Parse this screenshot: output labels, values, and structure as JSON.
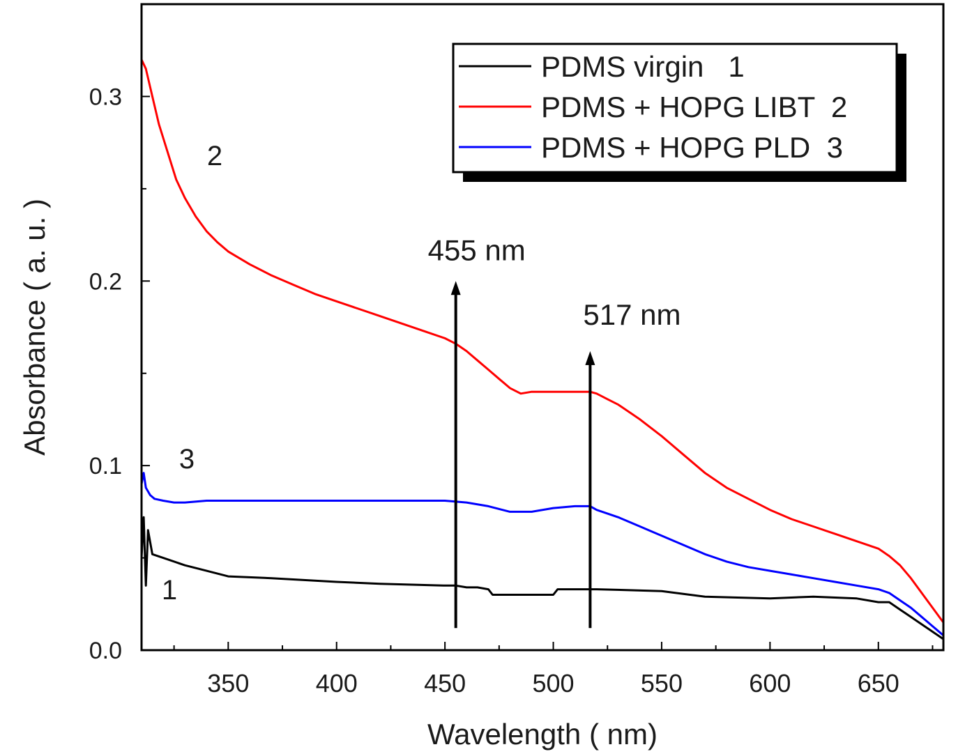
{
  "chart_data": {
    "type": "line",
    "title": "",
    "xlabel": "Wavelength ( nm)",
    "ylabel": "Absorbance ( a. u. )",
    "xlim": [
      310,
      680
    ],
    "ylim": [
      0,
      0.35
    ],
    "x_ticks": [
      350,
      400,
      450,
      500,
      550,
      600,
      650
    ],
    "x_tick_labels": [
      "350",
      "400",
      "450",
      "500",
      "550",
      "600",
      "650"
    ],
    "y_ticks": [
      0.0,
      0.1,
      0.2,
      0.3
    ],
    "y_tick_labels": [
      "0.0",
      "0.1",
      "0.2",
      "0.3"
    ],
    "grid": false,
    "legend_position": "top-right",
    "series": [
      {
        "name": "PDMS virgin   1",
        "color": "#000000",
        "curve_label": "1",
        "x": [
          310,
          311,
          312,
          313,
          315,
          320,
          330,
          340,
          350,
          370,
          400,
          420,
          450,
          455,
          460,
          465,
          470,
          472,
          480,
          490,
          500,
          502,
          520,
          550,
          570,
          600,
          620,
          640,
          650,
          655,
          660,
          665,
          670,
          675,
          680
        ],
        "y": [
          0.05,
          0.072,
          0.035,
          0.065,
          0.052,
          0.05,
          0.046,
          0.043,
          0.04,
          0.039,
          0.037,
          0.036,
          0.035,
          0.035,
          0.034,
          0.034,
          0.033,
          0.03,
          0.03,
          0.03,
          0.03,
          0.033,
          0.033,
          0.032,
          0.029,
          0.028,
          0.029,
          0.028,
          0.026,
          0.026,
          0.022,
          0.018,
          0.014,
          0.01,
          0.006
        ]
      },
      {
        "name": "PDMS + HOPG LIBT  2",
        "color": "#ff0000",
        "curve_label": "2",
        "x": [
          310,
          312,
          315,
          318,
          322,
          326,
          330,
          335,
          340,
          345,
          350,
          360,
          370,
          380,
          390,
          400,
          410,
          420,
          430,
          440,
          450,
          455,
          460,
          465,
          470,
          475,
          480,
          485,
          490,
          500,
          510,
          517,
          520,
          525,
          530,
          540,
          550,
          560,
          570,
          580,
          590,
          600,
          610,
          620,
          630,
          640,
          650,
          655,
          660,
          665,
          670,
          675,
          680
        ],
        "y": [
          0.32,
          0.315,
          0.3,
          0.285,
          0.27,
          0.255,
          0.245,
          0.235,
          0.227,
          0.221,
          0.216,
          0.209,
          0.203,
          0.198,
          0.193,
          0.189,
          0.185,
          0.181,
          0.177,
          0.173,
          0.169,
          0.166,
          0.162,
          0.157,
          0.152,
          0.147,
          0.142,
          0.139,
          0.14,
          0.14,
          0.14,
          0.14,
          0.139,
          0.136,
          0.133,
          0.125,
          0.116,
          0.106,
          0.096,
          0.088,
          0.082,
          0.076,
          0.071,
          0.067,
          0.063,
          0.059,
          0.055,
          0.051,
          0.046,
          0.039,
          0.031,
          0.023,
          0.015
        ]
      },
      {
        "name": "PDMS + HOPG PLD  3",
        "color": "#0000ff",
        "curve_label": "3",
        "x": [
          310,
          311,
          312,
          314,
          316,
          320,
          325,
          330,
          340,
          360,
          400,
          450,
          460,
          470,
          480,
          490,
          500,
          510,
          517,
          520,
          530,
          540,
          550,
          560,
          570,
          580,
          590,
          600,
          610,
          620,
          630,
          640,
          650,
          655,
          660,
          665,
          670,
          675,
          680
        ],
        "y": [
          0.09,
          0.096,
          0.088,
          0.084,
          0.082,
          0.081,
          0.08,
          0.08,
          0.081,
          0.081,
          0.081,
          0.081,
          0.08,
          0.078,
          0.075,
          0.075,
          0.077,
          0.078,
          0.078,
          0.076,
          0.072,
          0.067,
          0.062,
          0.057,
          0.052,
          0.048,
          0.045,
          0.043,
          0.041,
          0.039,
          0.037,
          0.035,
          0.033,
          0.031,
          0.027,
          0.023,
          0.018,
          0.013,
          0.008
        ]
      }
    ],
    "annotations": [
      {
        "label": "455 nm",
        "x": 455,
        "y_from": 0.012,
        "y_to": 0.2
      },
      {
        "label": "517 nm",
        "x": 517,
        "y_from": 0.012,
        "y_to": 0.162
      }
    ]
  }
}
